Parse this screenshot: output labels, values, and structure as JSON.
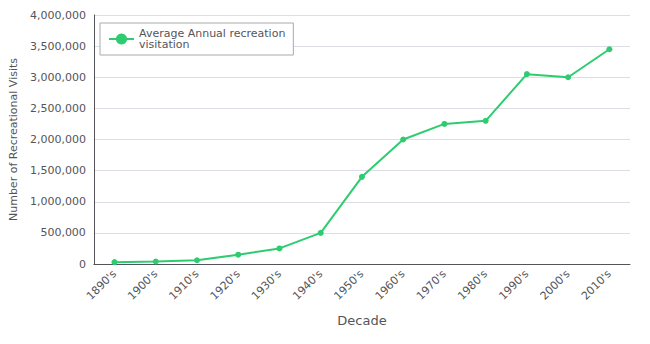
{
  "chart_data": {
    "type": "line",
    "xlabel": "Decade",
    "ylabel": "Number of Recreational Visits",
    "categories": [
      "1890's",
      "1900's",
      "1910's",
      "1920's",
      "1930's",
      "1940's",
      "1950's",
      "1960's",
      "1970's",
      "1980's",
      "1990's",
      "2000's",
      "2010's"
    ],
    "series": [
      {
        "name": "Average Annual recreation\nvisitation",
        "color": "#2ecc71",
        "marker": "circle",
        "values": [
          30000,
          40000,
          60000,
          150000,
          250000,
          500000,
          1400000,
          2000000,
          2250000,
          2300000,
          3050000,
          3000000,
          3450000
        ]
      }
    ],
    "ylim": [
      0,
      4000000
    ],
    "yticks": [
      0,
      {
        "value": 500000,
        "label": "500,000"
      },
      {
        "value": 1000000,
        "label": "1,000,000"
      },
      {
        "value": 1500000,
        "label": "1,500,000"
      },
      {
        "value": 2000000,
        "label": "2,000,000"
      },
      {
        "value": 2500000,
        "label": "2,500,000"
      },
      {
        "value": 3000000,
        "label": "3,000,000"
      },
      {
        "value": 3500000,
        "label": "3,500,000"
      },
      {
        "value": 4000000,
        "label": "4,000,000"
      }
    ],
    "grid": true,
    "legend": "upper left"
  }
}
